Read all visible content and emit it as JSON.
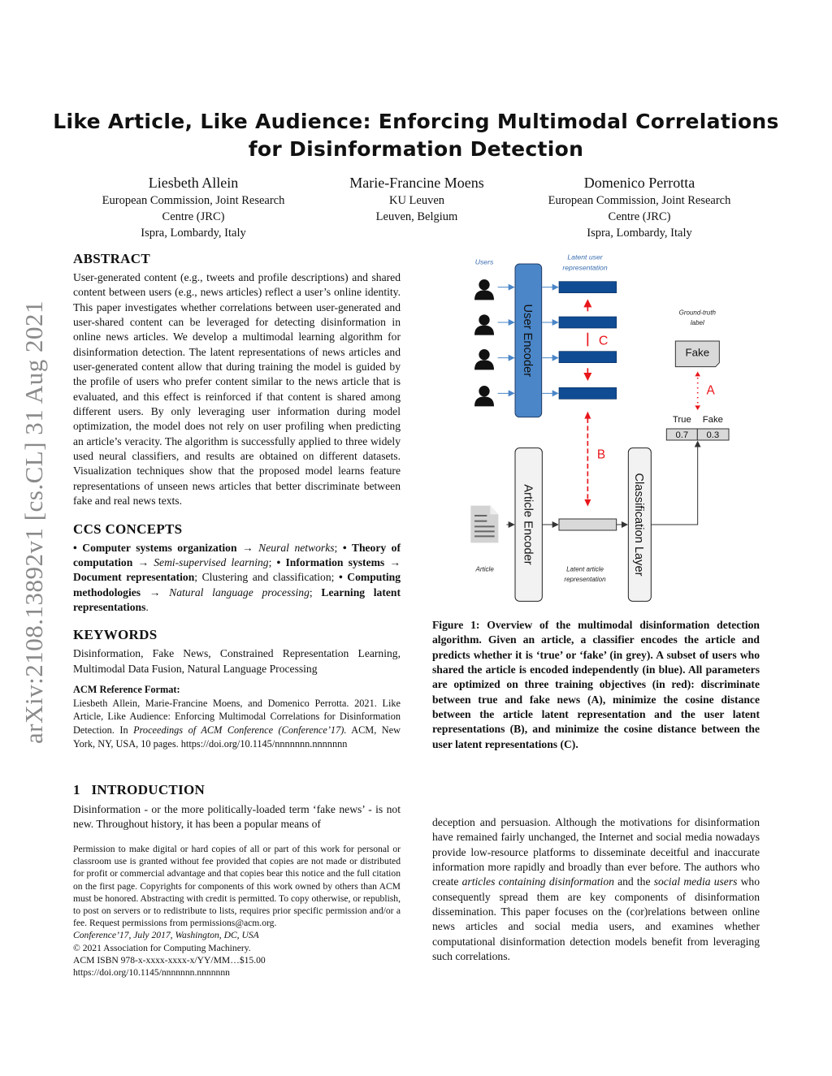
{
  "arxiv_stamp": "arXiv:2108.13892v1  [cs.CL]  31 Aug 2021",
  "title_line1": "Like Article, Like Audience: Enforcing Multimodal Correlations",
  "title_line2": "for Disinformation Detection",
  "authors": [
    {
      "name": "Liesbeth Allein",
      "aff1": "European Commission, Joint Research",
      "aff2": "Centre (JRC)",
      "aff3": "Ispra, Lombardy, Italy"
    },
    {
      "name": "Marie-Francine Moens",
      "aff1": "KU Leuven",
      "aff2": "Leuven, Belgium",
      "aff3": ""
    },
    {
      "name": "Domenico Perrotta",
      "aff1": "European Commission, Joint Research",
      "aff2": "Centre (JRC)",
      "aff3": "Ispra, Lombardy, Italy"
    }
  ],
  "abstract": {
    "heading": "ABSTRACT",
    "text": "User-generated content (e.g., tweets and profile descriptions) and shared content between users (e.g., news articles) reflect a user’s online identity. This paper investigates whether correlations between user-generated and user-shared content can be leveraged for detecting disinformation in online news articles. We develop a multimodal learning algorithm for disinformation detection. The latent representations of news articles and user-generated content allow that during training the model is guided by the profile of users who prefer content similar to the news article that is evaluated, and this effect is reinforced if that content is shared among different users. By only leveraging user information during model optimization, the model does not rely on user profiling when predicting an article’s veracity. The algorithm is successfully applied to three widely used neural classifiers, and results are obtained on different datasets. Visualization techniques show that the proposed model learns feature representations of unseen news articles that better discriminate between fake and real news texts."
  },
  "ccs": {
    "heading": "CCS CONCEPTS",
    "items": [
      {
        "bold": "• Computer systems organization",
        "arrow": " → ",
        "ital": "Neural networks",
        "sep": "; "
      },
      {
        "bold": "• Theory of computation",
        "arrow": " → ",
        "ital": "Semi-supervised learning",
        "sep": "; "
      },
      {
        "bold": "• Information systems",
        "arrow": " → ",
        "ital": "",
        "bold2": "Document representation",
        "sep": "; Clustering and classification; "
      },
      {
        "bold": "• Computing methodologies",
        "arrow": " → ",
        "ital": "Natural language processing",
        "sep": "; ",
        "bold2": "Learning latent representations",
        "end": "."
      }
    ]
  },
  "keywords": {
    "heading": "KEYWORDS",
    "text": "Disinformation, Fake News, Constrained Representation Learning, Multimodal Data Fusion, Natural Language Processing"
  },
  "acm_ref": {
    "heading": "ACM Reference Format:",
    "text1": "Liesbeth Allein, Marie-Francine Moens, and Domenico Perrotta. 2021. Like Article, Like Audience: Enforcing Multimodal Correlations for Disinformation Detection. In ",
    "ital": "Proceedings of ACM Conference (Conference’17).",
    "text2": " ACM, New York, NY, USA, 10 pages. https://doi.org/10.1145/nnnnnnn.nnnnnnn"
  },
  "intro": {
    "number": "1",
    "heading": "INTRODUCTION",
    "text_left": "Disinformation - or the more politically-loaded term ‘fake news’ - is not new. Throughout history, it has been a popular means of",
    "text_right_1": "deception and persuasion. Although the motivations for disinformation have remained fairly unchanged, the Internet and social media nowadays provide low-resource platforms to disseminate deceitful and inaccurate information more rapidly and broadly than ever before. The authors who create ",
    "ital_1": "articles containing disinformation",
    "text_right_2": " and the ",
    "ital_2": "social media users",
    "text_right_3": " who consequently spread them are key components of disinformation dissemination. This paper focuses on the (cor)relations between online news articles and social media users, and examines whether computational disinformation detection models benefit from leveraging such correlations."
  },
  "footnote": {
    "permission": "Permission to make digital or hard copies of all or part of this work for personal or classroom use is granted without fee provided that copies are not made or distributed for profit or commercial advantage and that copies bear this notice and the full citation on the first page. Copyrights for components of this work owned by others than ACM must be honored. Abstracting with credit is permitted. To copy otherwise, or republish, to post on servers or to redistribute to lists, requires prior specific permission and/or a fee. Request permissions from permissions@acm.org.",
    "conference": "Conference’17, July 2017, Washington, DC, USA",
    "copyright": "© 2021 Association for Computing Machinery.",
    "isbn": "ACM ISBN 978-x-xxxx-xxxx-x/YY/MM…$15.00",
    "doi": "https://doi.org/10.1145/nnnnnnn.nnnnnnn"
  },
  "figure": {
    "users_label": "Users",
    "latent_user_1": "Latent user",
    "latent_user_2": "representation",
    "user_encoder": "User Encoder",
    "ground_truth_1": "Ground-truth",
    "ground_truth_2": "label",
    "fake_label": "Fake",
    "label_c": "C",
    "label_a": "A",
    "label_b": "B",
    "true_head": "True",
    "fake_head": "Fake",
    "prob_true": "0.7",
    "prob_fake": "0.3",
    "article_encoder": "Article Encoder",
    "classification_layer": "Classification Layer",
    "article_label": "Article",
    "latent_article_1": "Latent article",
    "latent_article_2": "representation",
    "colors": {
      "blue": "#4a86c8",
      "dark_blue": "#0f4c94",
      "red": "#e8161b",
      "grey": "#d9d9d9"
    },
    "caption": "Figure 1: Overview of the multimodal disinformation detection algorithm. Given an article, a classifier encodes the article and predicts whether it is ‘true’ or ‘fake’ (in grey). A subset of users who shared the article is encoded independently (in blue). All parameters are optimized on three training objectives (in red): discriminate between true and fake news (A), minimize the cosine distance between the article latent representation and the user latent representations (B), and minimize the cosine distance between the user latent representations (C)."
  }
}
